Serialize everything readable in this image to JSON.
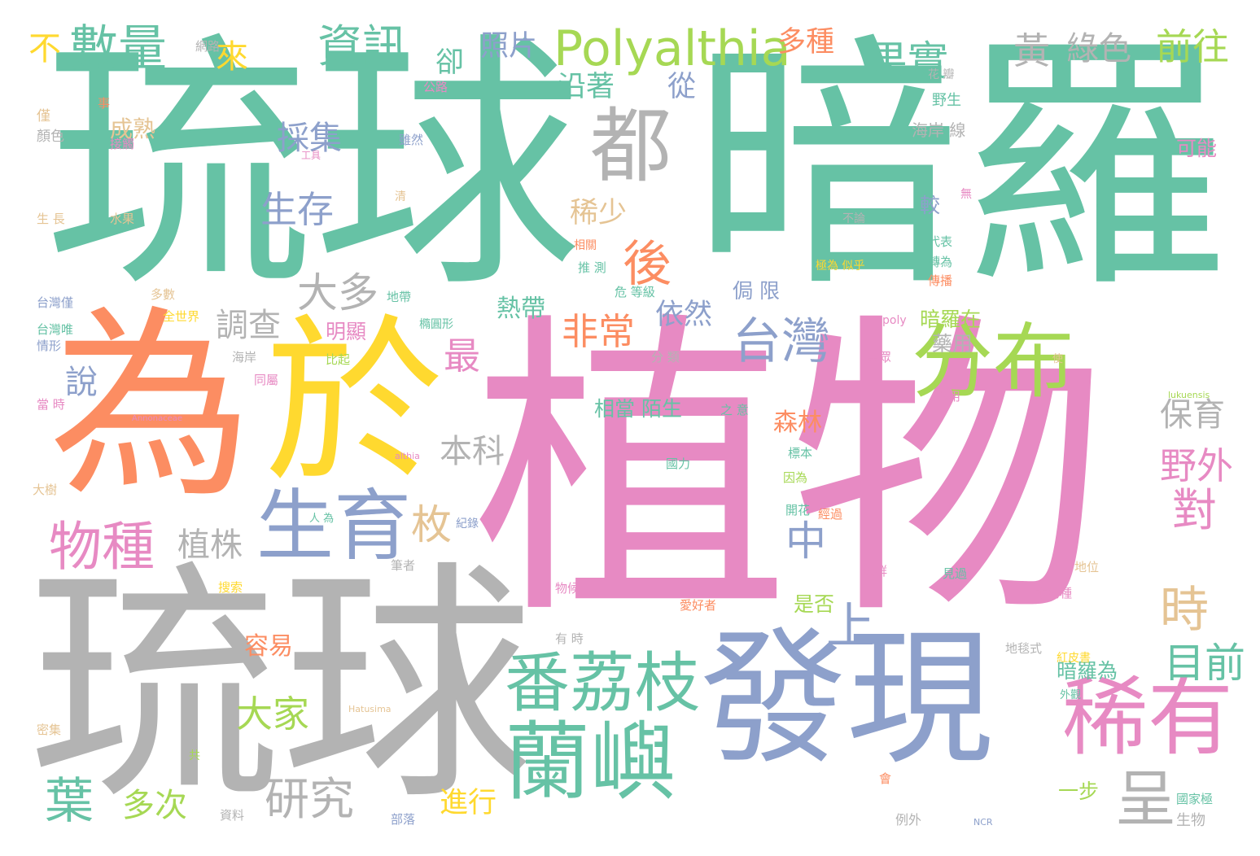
{
  "palette": {
    "green": "#66c2a5",
    "orange": "#fc8d62",
    "blue": "#8da0cb",
    "pink": "#e78ac3",
    "lime": "#a6d854",
    "yellow": "#ffd92f",
    "tan": "#e5c494",
    "gray": "#b3b3b3"
  },
  "words": [
    {
      "text": "琉球",
      "color": "#66c2a5"
    },
    {
      "text": "暗羅",
      "color": "#66c2a5"
    },
    {
      "text": "植物",
      "color": "#e78ac3"
    },
    {
      "text": "琉球",
      "color": "#b3b3b3"
    },
    {
      "text": "為",
      "color": "#fc8d62"
    },
    {
      "text": "於",
      "color": "#ffd92f"
    },
    {
      "text": "發現",
      "color": "#8da0cb"
    },
    {
      "text": "都",
      "color": "#b3b3b3"
    },
    {
      "text": "分布",
      "color": "#a6d854"
    },
    {
      "text": "蘭嶼",
      "color": "#66c2a5"
    },
    {
      "text": "稀有",
      "color": "#e78ac3"
    },
    {
      "text": "生育",
      "color": "#8da0cb"
    },
    {
      "text": "番荔枝",
      "color": "#66c2a5"
    },
    {
      "text": "Polyalthia",
      "color": "#a6d854"
    },
    {
      "text": "台灣",
      "color": "#8da0cb"
    },
    {
      "text": "數量",
      "color": "#66c2a5"
    },
    {
      "text": "資訊",
      "color": "#66c2a5"
    },
    {
      "text": "果實",
      "color": "#66c2a5"
    },
    {
      "text": "物種",
      "color": "#e78ac3"
    },
    {
      "text": "呈",
      "color": "#b3b3b3"
    },
    {
      "text": "研究",
      "color": "#b3b3b3"
    },
    {
      "text": "生存",
      "color": "#8da0cb"
    },
    {
      "text": "後",
      "color": "#fc8d62"
    },
    {
      "text": "大多",
      "color": "#b3b3b3"
    },
    {
      "text": "非常",
      "color": "#fc8d62"
    },
    {
      "text": "時",
      "color": "#e5c494"
    },
    {
      "text": "上",
      "color": "#8da0cb"
    },
    {
      "text": "中",
      "color": "#8da0cb"
    },
    {
      "text": "對",
      "color": "#e78ac3"
    },
    {
      "text": "枚",
      "color": "#e5c494"
    },
    {
      "text": "葉",
      "color": "#66c2a5"
    },
    {
      "text": "大家",
      "color": "#a6d854"
    },
    {
      "text": "黃",
      "color": "#b3b3b3"
    },
    {
      "text": "綠色",
      "color": "#b3b3b3"
    },
    {
      "text": "前往",
      "color": "#a6d854"
    },
    {
      "text": "目前",
      "color": "#66c2a5"
    },
    {
      "text": "野外",
      "color": "#e78ac3"
    },
    {
      "text": "保育",
      "color": "#b3b3b3"
    },
    {
      "text": "採集",
      "color": "#8da0cb"
    },
    {
      "text": "調查",
      "color": "#b3b3b3"
    },
    {
      "text": "多次",
      "color": "#a6d854"
    },
    {
      "text": "最",
      "color": "#e78ac3"
    },
    {
      "text": "稀少",
      "color": "#e5c494"
    },
    {
      "text": "依然",
      "color": "#8da0cb"
    },
    {
      "text": "來",
      "color": "#ffd92f"
    },
    {
      "text": "照片",
      "color": "#8da0cb"
    },
    {
      "text": "多種",
      "color": "#fc8d62"
    },
    {
      "text": "不",
      "color": "#ffd92f"
    },
    {
      "text": "卻",
      "color": "#66c2a5"
    },
    {
      "text": "沿著",
      "color": "#66c2a5"
    },
    {
      "text": "從",
      "color": "#8da0cb"
    },
    {
      "text": "植株",
      "color": "#b3b3b3"
    },
    {
      "text": "本科",
      "color": "#b3b3b3"
    },
    {
      "text": "森林",
      "color": "#fc8d62"
    },
    {
      "text": "進行",
      "color": "#ffd92f"
    },
    {
      "text": "熱帶",
      "color": "#66c2a5"
    },
    {
      "text": "容易",
      "color": "#fc8d62"
    },
    {
      "text": "說",
      "color": "#8da0cb"
    },
    {
      "text": "成熟",
      "color": "#e5c494"
    },
    {
      "text": "侷 限",
      "color": "#8da0cb"
    },
    {
      "text": "明顯",
      "color": "#e78ac3"
    },
    {
      "text": "是否",
      "color": "#a6d854"
    },
    {
      "text": "一步",
      "color": "#a6d854"
    },
    {
      "text": "暗羅為",
      "color": "#66c2a5"
    },
    {
      "text": "暗羅在",
      "color": "#a6d854"
    },
    {
      "text": "藥用",
      "color": "#b3b3b3"
    },
    {
      "text": "相當 陌生",
      "color": "#66c2a5"
    },
    {
      "text": "可能",
      "color": "#e78ac3"
    },
    {
      "text": "較",
      "color": "#8da0cb"
    },
    {
      "text": "海岸 線",
      "color": "#b3b3b3"
    },
    {
      "text": "野生",
      "color": "#66c2a5"
    },
    {
      "text": "代表",
      "color": "#66c2a5"
    },
    {
      "text": "轉為",
      "color": "#66c2a5"
    },
    {
      "text": "傳播",
      "color": "#fc8d62"
    },
    {
      "text": "生物",
      "color": "#b3b3b3"
    },
    {
      "text": "國家極",
      "color": "#66c2a5"
    },
    {
      "text": "例外",
      "color": "#b3b3b3"
    },
    {
      "text": "部落",
      "color": "#8da0cb"
    },
    {
      "text": "資料",
      "color": "#b3b3b3"
    },
    {
      "text": "網路",
      "color": "#b3b3b3"
    },
    {
      "text": "公路",
      "color": "#e78ac3"
    },
    {
      "text": "雖然",
      "color": "#8da0cb"
    },
    {
      "text": "顏色",
      "color": "#b3b3b3"
    },
    {
      "text": "僅",
      "color": "#e5c494"
    },
    {
      "text": "接觸",
      "color": "#e78ac3"
    },
    {
      "text": "生 長",
      "color": "#e5c494"
    },
    {
      "text": "水果",
      "color": "#e5c494"
    },
    {
      "text": "台灣僅",
      "color": "#8da0cb"
    },
    {
      "text": "台灣唯",
      "color": "#66c2a5"
    },
    {
      "text": "情形",
      "color": "#8da0cb"
    },
    {
      "text": "當 時",
      "color": "#e78ac3"
    },
    {
      "text": "大樹",
      "color": "#e5c494"
    },
    {
      "text": "密集",
      "color": "#e5c494"
    },
    {
      "text": "地帶",
      "color": "#66c2a5"
    },
    {
      "text": "全世界",
      "color": "#ffd92f"
    },
    {
      "text": "多數",
      "color": "#e5c494"
    },
    {
      "text": "比起",
      "color": "#a6d854"
    },
    {
      "text": "同屬",
      "color": "#e78ac3"
    },
    {
      "text": "海岸",
      "color": "#b3b3b3"
    },
    {
      "text": "危 等級",
      "color": "#66c2a5"
    },
    {
      "text": "推 測",
      "color": "#66c2a5"
    },
    {
      "text": "相關",
      "color": "#fc8d62"
    },
    {
      "text": "分 類",
      "color": "#b3b3b3"
    },
    {
      "text": "之 意",
      "color": "#66c2a5"
    },
    {
      "text": "橢圓形",
      "color": "#66c2a5"
    },
    {
      "text": "花 瓣",
      "color": "#b3b3b3"
    },
    {
      "text": "清",
      "color": "#e5c494"
    },
    {
      "text": "工具",
      "color": "#e78ac3"
    },
    {
      "text": "事",
      "color": "#fc8d62"
    },
    {
      "text": "不論",
      "color": "#b3b3b3"
    },
    {
      "text": "極為 似乎",
      "color": "#ffd92f"
    },
    {
      "text": "民眾",
      "color": "#e78ac3"
    },
    {
      "text": "食用",
      "color": "#e78ac3"
    },
    {
      "text": "標本",
      "color": "#66c2a5"
    },
    {
      "text": "因為",
      "color": "#a6d854"
    },
    {
      "text": "開花",
      "color": "#66c2a5"
    },
    {
      "text": "經過",
      "color": "#fc8d62"
    },
    {
      "text": "國力",
      "color": "#66c2a5"
    },
    {
      "text": "族群",
      "color": "#e78ac3"
    },
    {
      "text": "見過",
      "color": "#66c2a5"
    },
    {
      "text": "地位",
      "color": "#e5c494"
    },
    {
      "text": "本物種",
      "color": "#e78ac3"
    },
    {
      "text": "紅皮書",
      "color": "#ffd92f"
    },
    {
      "text": "愛好者",
      "color": "#fc8d62"
    },
    {
      "text": "有 時",
      "color": "#b3b3b3"
    },
    {
      "text": "物候",
      "color": "#e78ac3"
    },
    {
      "text": "紀錄",
      "color": "#8da0cb"
    },
    {
      "text": "筆者",
      "color": "#b3b3b3"
    },
    {
      "text": "搜索",
      "color": "#ffd92f"
    },
    {
      "text": "地毯式",
      "color": "#b3b3b3"
    },
    {
      "text": "外觀",
      "color": "#66c2a5"
    },
    {
      "text": "人 為",
      "color": "#66c2a5"
    },
    {
      "text": "poly",
      "color": "#e78ac3"
    },
    {
      "text": "Annonaceae",
      "color": "#e78ac3"
    },
    {
      "text": "althia",
      "color": "#e78ac3"
    },
    {
      "text": "lukuensis",
      "color": "#a6d854"
    },
    {
      "text": "Hatusima",
      "color": "#e5c494"
    },
    {
      "text": "NCR",
      "color": "#8da0cb"
    },
    {
      "text": "共",
      "color": "#a6d854"
    },
    {
      "text": "會",
      "color": "#fc8d62"
    },
    {
      "text": "無",
      "color": "#e78ac3"
    },
    {
      "text": "使",
      "color": "#e5c494"
    }
  ]
}
